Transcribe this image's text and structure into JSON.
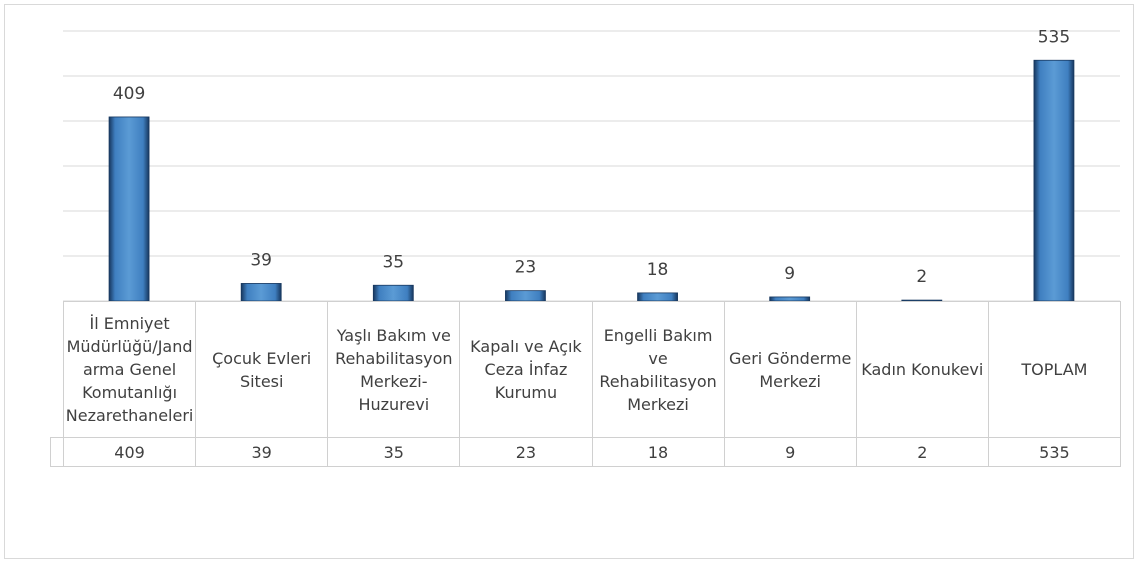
{
  "chart_data": {
    "type": "bar",
    "categories": [
      "İl Emniyet Müdürlüğü/Jandarma Genel Komutanlığı Nezarethaneleri",
      "Çocuk Evleri Sitesi",
      "Yaşlı Bakım ve Rehabilitasyon Merkezi-Huzurevi",
      "Kapalı ve Açık Ceza İnfaz Kurumu",
      "Engelli Bakım ve Rehabilitasyon Merkezi",
      "Geri Gönderme Merkezi",
      "Kadın Konukevi",
      "TOPLAM"
    ],
    "values": [
      409,
      39,
      35,
      23,
      18,
      9,
      2,
      535
    ],
    "color": "#5b9bd5",
    "ylim": [
      0,
      600
    ],
    "yticks": [
      0,
      100,
      200,
      300,
      400,
      500,
      600
    ],
    "grid": true
  }
}
